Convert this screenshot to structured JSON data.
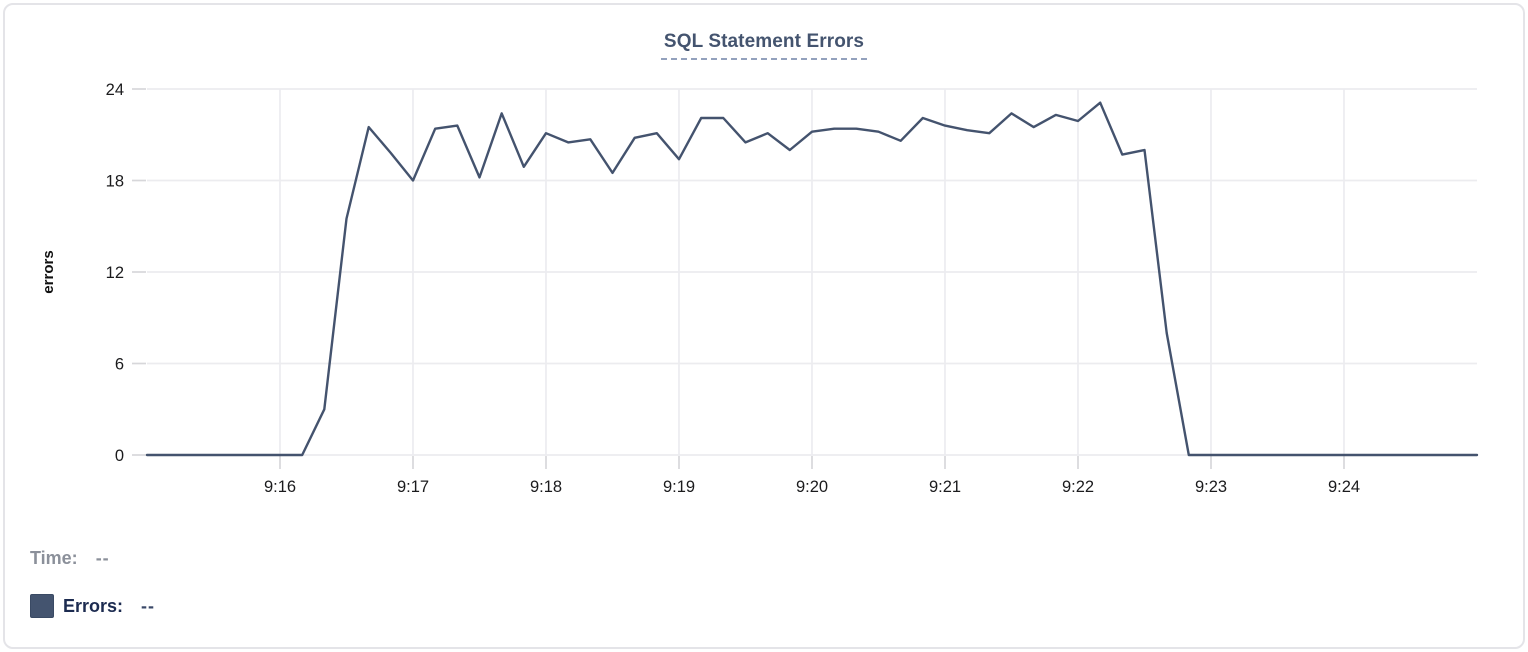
{
  "header": {
    "title": "SQL Statement Errors"
  },
  "tooltip": {
    "time_label": "Time:",
    "time_value": "--",
    "errors_label": "Errors:",
    "errors_value": "--"
  },
  "colors": {
    "accent_line": "#44536e",
    "legend_swatch": "#44546f",
    "title_text": "#44546f",
    "errors_text": "#1c2b50",
    "muted_text": "#8b909a",
    "grid": "#ececef",
    "tick": "#d7d7da",
    "axis_text": "#1b1b1d"
  },
  "chart_data": {
    "type": "line",
    "title": "SQL Statement Errors",
    "xlabel": "",
    "ylabel": "errors",
    "ylim": [
      0,
      24
    ],
    "y_ticks": [
      0,
      6,
      12,
      18,
      24
    ],
    "x_tick_labels": [
      "9:16",
      "9:17",
      "9:18",
      "9:19",
      "9:20",
      "9:21",
      "9:22",
      "9:23",
      "9:24"
    ],
    "x_range": [
      "9:15:00",
      "9:25:00"
    ],
    "sample_interval_seconds": 10,
    "grid": true,
    "legend_position": "bottom-left",
    "series_name": "Errors",
    "times": [
      "9:15:00",
      "9:15:10",
      "9:15:20",
      "9:15:30",
      "9:15:40",
      "9:15:50",
      "9:16:00",
      "9:16:10",
      "9:16:20",
      "9:16:30",
      "9:16:40",
      "9:16:50",
      "9:17:00",
      "9:17:10",
      "9:17:20",
      "9:17:30",
      "9:17:40",
      "9:17:50",
      "9:18:00",
      "9:18:10",
      "9:18:20",
      "9:18:30",
      "9:18:40",
      "9:18:50",
      "9:19:00",
      "9:19:10",
      "9:19:20",
      "9:19:30",
      "9:19:40",
      "9:19:50",
      "9:20:00",
      "9:20:10",
      "9:20:20",
      "9:20:30",
      "9:20:40",
      "9:20:50",
      "9:21:00",
      "9:21:10",
      "9:21:20",
      "9:21:30",
      "9:21:40",
      "9:21:50",
      "9:22:00",
      "9:22:10",
      "9:22:20",
      "9:22:30",
      "9:22:40",
      "9:22:50",
      "9:23:00",
      "9:23:10",
      "9:23:20",
      "9:23:30",
      "9:23:40",
      "9:23:50",
      "9:24:00",
      "9:24:10",
      "9:24:20",
      "9:24:30",
      "9:24:40",
      "9:24:50",
      "9:25:00"
    ],
    "values": [
      0,
      0,
      0,
      0,
      0,
      0,
      0,
      0,
      3,
      15.5,
      21.5,
      19.8,
      18,
      21.4,
      21.6,
      18.2,
      22.4,
      18.9,
      21.1,
      20.5,
      20.7,
      18.5,
      20.8,
      21.1,
      19.4,
      22.1,
      22.1,
      20.5,
      21.1,
      20,
      21.2,
      21.4,
      21.4,
      21.2,
      20.6,
      22.1,
      21.6,
      21.3,
      21.1,
      22.4,
      21.5,
      22.3,
      21.9,
      23.1,
      19.7,
      20,
      8,
      0,
      0,
      0,
      0,
      0,
      0,
      0,
      0,
      0,
      0,
      0,
      0,
      0,
      0
    ]
  }
}
